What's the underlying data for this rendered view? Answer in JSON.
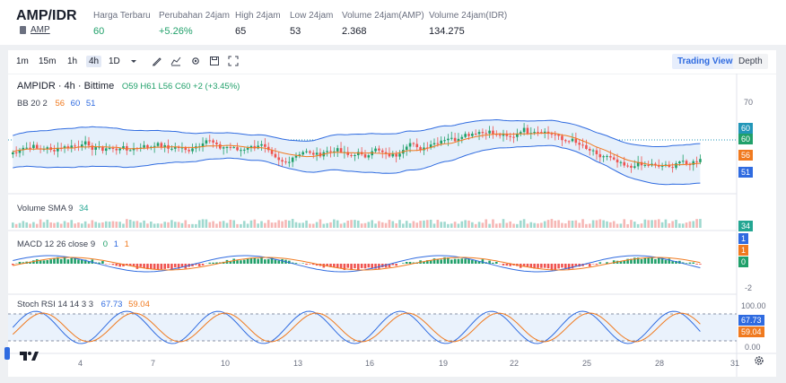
{
  "header": {
    "pair": "AMP/IDR",
    "asset": "AMP",
    "stats": [
      {
        "label": "Harga Terbaru",
        "value": "60",
        "up": true
      },
      {
        "label": "Perubahan 24jam",
        "value": "+5.26%",
        "up": true
      },
      {
        "label": "High 24jam",
        "value": "65",
        "up": false
      },
      {
        "label": "Low 24jam",
        "value": "53",
        "up": false
      },
      {
        "label": "Volume 24jam(AMP)",
        "value": "2.368",
        "up": false
      },
      {
        "label": "Volume 24jam(IDR)",
        "value": "134.275",
        "up": false
      }
    ]
  },
  "toolbar": {
    "timeframes": [
      "1m",
      "15m",
      "1h",
      "4h",
      "1D"
    ],
    "active_timeframe": "4h",
    "views": [
      "Trading View",
      "Depth"
    ],
    "active_view": "Trading View",
    "icons": [
      "chevron-down-icon",
      "draw-icon",
      "indicator-icon",
      "settings-icon",
      "save-icon",
      "fullscreen-icon"
    ]
  },
  "chart": {
    "title": "AMPIDR · 4h · Bittime",
    "ohlc": "O59 H61 L56 C60 +2 (+3.45%)",
    "bb": {
      "label": "BB 20 2",
      "v1": "56",
      "v2": "60",
      "v3": "51"
    },
    "volume": {
      "label": "Volume SMA 9",
      "value": "34"
    },
    "macd": {
      "label": "MACD 12 26 close 9",
      "v1": "0",
      "v2": "1",
      "v3": "1"
    },
    "stoch": {
      "label": "Stoch RSI 14 14 3 3",
      "k": "67.73",
      "d": "59.04"
    },
    "price_axis": [
      "70",
      "60",
      "56",
      "51"
    ],
    "price_tags": [
      {
        "text": "60",
        "color": "#2196b8"
      },
      {
        "text": "60",
        "color": "#20a06a"
      },
      {
        "text": "56",
        "color": "#f07a1f"
      },
      {
        "text": "51",
        "color": "#2f6be0"
      }
    ],
    "volume_tag": "34",
    "macd_tags": [
      {
        "text": "1",
        "color": "#2f6be0"
      },
      {
        "text": "1",
        "color": "#f07a1f"
      },
      {
        "text": "0",
        "color": "#20a06a"
      }
    ],
    "macd_axis_low": "-2",
    "stoch_axis": [
      "100.00",
      "0.00"
    ],
    "stoch_tags": [
      {
        "text": "67.73",
        "color": "#2f6be0"
      },
      {
        "text": "59.04",
        "color": "#f07a1f"
      }
    ],
    "x_labels": [
      "4",
      "7",
      "10",
      "13",
      "16",
      "19",
      "22",
      "25",
      "28",
      "31"
    ],
    "colors": {
      "up": "#20a06a",
      "down": "#ef5350",
      "bb": "#2f6be0",
      "basis": "#f07a1f",
      "band_fill": "#e6f0fb"
    }
  }
}
